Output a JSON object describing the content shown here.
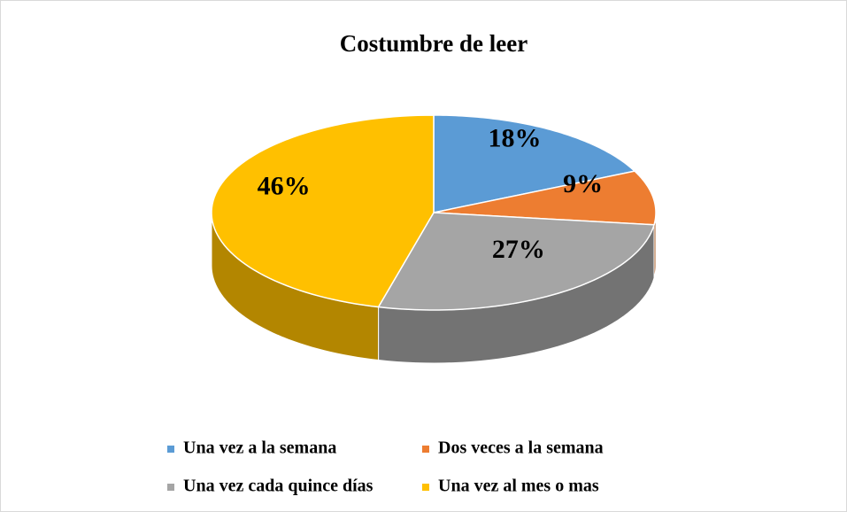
{
  "chart_data": {
    "type": "pie",
    "title": "Costumbre de leer",
    "categories": [
      "Una vez a la semana",
      "Dos veces a la semana",
      "Una vez cada quince días",
      "Una vez al mes o mas"
    ],
    "values": [
      18,
      9,
      27,
      46
    ],
    "value_labels": [
      "18%",
      "9%",
      "27%",
      "46%"
    ],
    "colors": [
      "#5b9bd5",
      "#ed7d31",
      "#a5a5a5",
      "#ffc000"
    ],
    "legend": "bottom"
  }
}
